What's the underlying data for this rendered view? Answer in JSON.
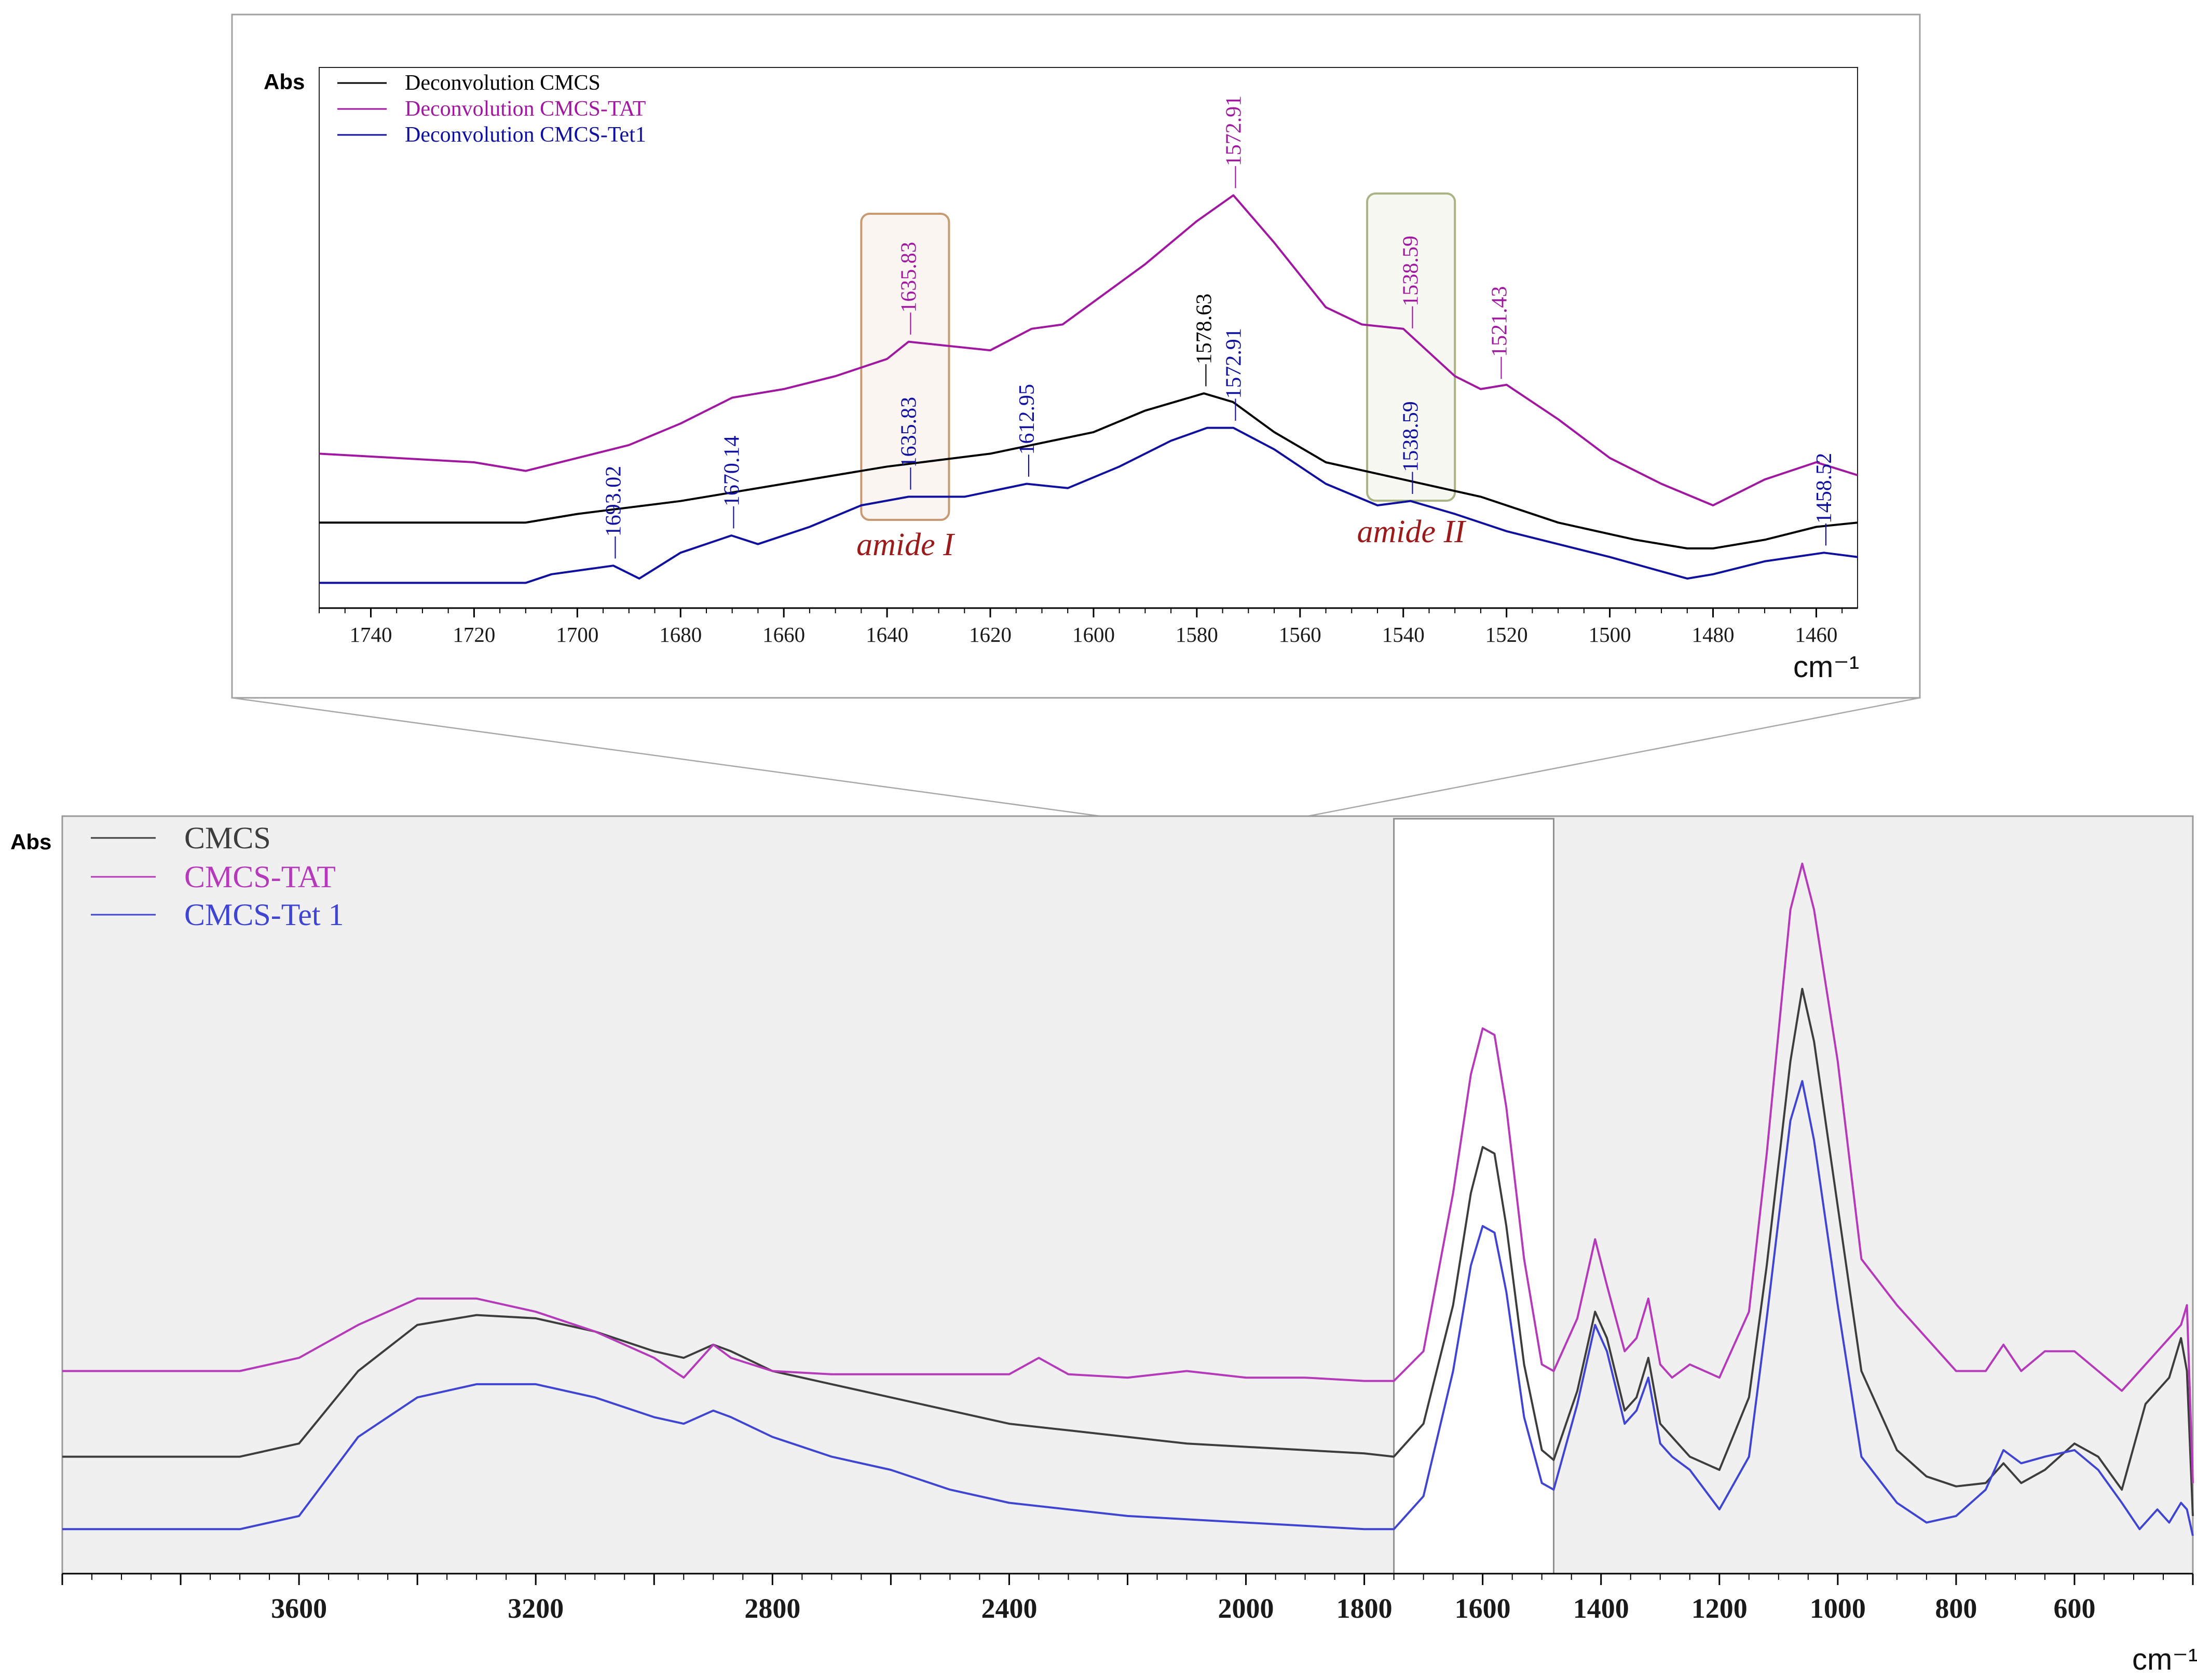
{
  "colors": {
    "cmcs": "#000000",
    "tat": "#a0189f",
    "tet1": "#10109e",
    "cmcs_main": "#3d3d3d",
    "tat_main": "#b43ab9",
    "tet1_main": "#3f45d0",
    "amide1_box": "#c89a72",
    "amide2_box": "#a8b483"
  },
  "chart_data": [
    {
      "type": "line",
      "title": "",
      "ylabel": "Abs",
      "xlabel": "cm⁻¹",
      "xlim": [
        1750,
        1452
      ],
      "xticks": [
        1740,
        1720,
        1700,
        1680,
        1660,
        1640,
        1620,
        1600,
        1580,
        1560,
        1540,
        1520,
        1500,
        1480,
        1460
      ],
      "ylim": [
        0,
        1
      ],
      "legend_position": "top-left",
      "series": [
        {
          "name": "Deconvolution CMCS",
          "x": [
            1750,
            1710,
            1700,
            1680,
            1660,
            1640,
            1620,
            1600,
            1590,
            1578.63,
            1573,
            1565,
            1555,
            1540,
            1525,
            1510,
            1495,
            1485,
            1480,
            1470,
            1460,
            1452
          ],
          "values": [
            0.16,
            0.16,
            0.18,
            0.21,
            0.25,
            0.29,
            0.32,
            0.37,
            0.42,
            0.46,
            0.44,
            0.37,
            0.3,
            0.26,
            0.22,
            0.16,
            0.12,
            0.1,
            0.1,
            0.12,
            0.15,
            0.16
          ]
        },
        {
          "name": "Deconvolution CMCS-TAT",
          "x": [
            1750,
            1720,
            1710,
            1690,
            1680,
            1670,
            1660,
            1650,
            1640,
            1635.83,
            1620,
            1612,
            1606,
            1590,
            1580,
            1572.91,
            1565,
            1555,
            1548,
            1540,
            1530,
            1525,
            1520,
            1510,
            1500,
            1490,
            1480,
            1470,
            1460,
            1452
          ],
          "values": [
            0.32,
            0.3,
            0.28,
            0.34,
            0.39,
            0.45,
            0.47,
            0.5,
            0.54,
            0.58,
            0.56,
            0.61,
            0.62,
            0.76,
            0.86,
            0.92,
            0.81,
            0.66,
            0.62,
            0.61,
            0.5,
            0.47,
            0.48,
            0.4,
            0.31,
            0.25,
            0.2,
            0.26,
            0.3,
            0.27
          ]
        },
        {
          "name": "Deconvolution CMCS-Tet1",
          "x": [
            1750,
            1710,
            1705,
            1693.02,
            1688,
            1680,
            1670.14,
            1665,
            1655,
            1645,
            1635.83,
            1625,
            1612.95,
            1605,
            1595,
            1585,
            1578,
            1572.91,
            1565,
            1555,
            1545,
            1538.59,
            1530,
            1520,
            1500,
            1485,
            1480,
            1470,
            1458.52,
            1452
          ],
          "values": [
            0.02,
            0.02,
            0.04,
            0.06,
            0.03,
            0.09,
            0.13,
            0.11,
            0.15,
            0.2,
            0.22,
            0.22,
            0.25,
            0.24,
            0.29,
            0.35,
            0.38,
            0.38,
            0.33,
            0.25,
            0.2,
            0.21,
            0.18,
            0.14,
            0.08,
            0.03,
            0.04,
            0.07,
            0.09,
            0.08
          ]
        }
      ],
      "peak_annotations": [
        {
          "series": "Deconvolution CMCS",
          "x": 1578.63,
          "label": "1578.63"
        },
        {
          "series": "Deconvolution CMCS-TAT",
          "x": 1635.83,
          "label": "1635.83"
        },
        {
          "series": "Deconvolution CMCS-TAT",
          "x": 1572.91,
          "label": "1572.91"
        },
        {
          "series": "Deconvolution CMCS-TAT",
          "x": 1538.59,
          "label": "1538.59"
        },
        {
          "series": "Deconvolution CMCS-TAT",
          "x": 1521.43,
          "label": "1521.43"
        },
        {
          "series": "Deconvolution CMCS-Tet1",
          "x": 1693.02,
          "label": "1693.02"
        },
        {
          "series": "Deconvolution CMCS-Tet1",
          "x": 1670.14,
          "label": "1670.14"
        },
        {
          "series": "Deconvolution CMCS-Tet1",
          "x": 1635.83,
          "label": "1635.83"
        },
        {
          "series": "Deconvolution CMCS-Tet1",
          "x": 1612.95,
          "label": "1612.95"
        },
        {
          "series": "Deconvolution CMCS-Tet1",
          "x": 1572.91,
          "label": "1572.91"
        },
        {
          "series": "Deconvolution CMCS-Tet1",
          "x": 1538.59,
          "label": "1538.59"
        },
        {
          "series": "Deconvolution CMCS-Tet1",
          "x": 1458.52,
          "label": "1458.52"
        }
      ],
      "regions": [
        {
          "label": "amide I",
          "x_range": [
            1645,
            1628
          ]
        },
        {
          "label": "amide II",
          "x_range": [
            1547,
            1530
          ]
        }
      ]
    },
    {
      "type": "line",
      "title": "",
      "ylabel": "Abs",
      "xlabel": "cm⁻¹",
      "xlim": [
        4000,
        400
      ],
      "xticks": [
        3600,
        3200,
        2800,
        2400,
        2000,
        1800,
        1600,
        1400,
        1200,
        1000,
        800,
        600
      ],
      "ylim": [
        0,
        1
      ],
      "highlighted_range": [
        1750,
        1480
      ],
      "legend_position": "top-left",
      "series": [
        {
          "name": "CMCS",
          "x": [
            4000,
            3700,
            3600,
            3500,
            3400,
            3300,
            3200,
            3100,
            3000,
            2950,
            2900,
            2870,
            2800,
            2700,
            2600,
            2500,
            2400,
            2300,
            2200,
            2100,
            2000,
            1900,
            1800,
            1750,
            1700,
            1650,
            1620,
            1600,
            1580,
            1560,
            1530,
            1500,
            1480,
            1440,
            1410,
            1390,
            1360,
            1340,
            1320,
            1300,
            1280,
            1250,
            1200,
            1150,
            1120,
            1080,
            1060,
            1040,
            1000,
            960,
            900,
            850,
            800,
            750,
            720,
            690,
            650,
            600,
            560,
            520,
            480,
            440,
            420,
            410,
            400
          ],
          "values": [
            0.12,
            0.12,
            0.14,
            0.25,
            0.32,
            0.335,
            0.33,
            0.31,
            0.28,
            0.27,
            0.29,
            0.28,
            0.25,
            0.23,
            0.21,
            0.19,
            0.17,
            0.16,
            0.15,
            0.14,
            0.135,
            0.13,
            0.125,
            0.12,
            0.17,
            0.35,
            0.52,
            0.59,
            0.58,
            0.47,
            0.26,
            0.13,
            0.115,
            0.22,
            0.34,
            0.3,
            0.19,
            0.21,
            0.27,
            0.17,
            0.15,
            0.12,
            0.1,
            0.21,
            0.41,
            0.72,
            0.83,
            0.75,
            0.5,
            0.25,
            0.13,
            0.09,
            0.075,
            0.08,
            0.11,
            0.08,
            0.1,
            0.14,
            0.12,
            0.07,
            0.2,
            0.24,
            0.3,
            0.25,
            0.03
          ]
        },
        {
          "name": "CMCS-TAT",
          "x": [
            4000,
            3700,
            3600,
            3500,
            3400,
            3300,
            3200,
            3100,
            3000,
            2950,
            2900,
            2870,
            2800,
            2700,
            2600,
            2500,
            2400,
            2350,
            2300,
            2200,
            2100,
            2000,
            1900,
            1800,
            1750,
            1700,
            1650,
            1620,
            1600,
            1580,
            1560,
            1530,
            1500,
            1480,
            1440,
            1410,
            1390,
            1360,
            1340,
            1320,
            1300,
            1280,
            1250,
            1200,
            1150,
            1120,
            1080,
            1060,
            1040,
            1000,
            960,
            900,
            850,
            800,
            750,
            720,
            690,
            650,
            600,
            560,
            520,
            490,
            460,
            440,
            420,
            410,
            400
          ],
          "values": [
            0.25,
            0.25,
            0.27,
            0.32,
            0.36,
            0.36,
            0.34,
            0.31,
            0.27,
            0.24,
            0.29,
            0.27,
            0.25,
            0.245,
            0.245,
            0.245,
            0.245,
            0.27,
            0.245,
            0.24,
            0.25,
            0.24,
            0.24,
            0.235,
            0.235,
            0.28,
            0.52,
            0.7,
            0.77,
            0.76,
            0.65,
            0.42,
            0.26,
            0.25,
            0.33,
            0.45,
            0.38,
            0.28,
            0.3,
            0.36,
            0.26,
            0.24,
            0.26,
            0.24,
            0.34,
            0.58,
            0.95,
            1.02,
            0.95,
            0.72,
            0.42,
            0.35,
            0.3,
            0.25,
            0.25,
            0.29,
            0.25,
            0.28,
            0.28,
            0.25,
            0.22,
            0.25,
            0.28,
            0.3,
            0.32,
            0.35,
            0.08
          ]
        },
        {
          "name": "CMCS-Tet 1",
          "x": [
            4000,
            3700,
            3600,
            3500,
            3400,
            3300,
            3200,
            3100,
            3000,
            2950,
            2900,
            2870,
            2800,
            2700,
            2600,
            2500,
            2400,
            2300,
            2200,
            2100,
            2000,
            1900,
            1800,
            1750,
            1700,
            1650,
            1620,
            1600,
            1580,
            1560,
            1530,
            1500,
            1480,
            1440,
            1410,
            1390,
            1360,
            1340,
            1320,
            1300,
            1280,
            1250,
            1200,
            1150,
            1120,
            1080,
            1060,
            1040,
            1000,
            960,
            900,
            850,
            800,
            750,
            720,
            690,
            650,
            600,
            560,
            520,
            490,
            460,
            440,
            420,
            410,
            400
          ],
          "values": [
            0.01,
            0.01,
            0.03,
            0.15,
            0.21,
            0.23,
            0.23,
            0.21,
            0.18,
            0.17,
            0.19,
            0.18,
            0.15,
            0.12,
            0.1,
            0.07,
            0.05,
            0.04,
            0.03,
            0.025,
            0.02,
            0.015,
            0.01,
            0.01,
            0.06,
            0.25,
            0.41,
            0.47,
            0.46,
            0.37,
            0.18,
            0.08,
            0.07,
            0.2,
            0.32,
            0.28,
            0.17,
            0.19,
            0.24,
            0.14,
            0.12,
            0.1,
            0.04,
            0.12,
            0.33,
            0.63,
            0.69,
            0.6,
            0.35,
            0.12,
            0.05,
            0.02,
            0.03,
            0.07,
            0.13,
            0.11,
            0.12,
            0.13,
            0.1,
            0.05,
            0.01,
            0.04,
            0.02,
            0.05,
            0.04,
            0.0
          ]
        }
      ]
    }
  ]
}
